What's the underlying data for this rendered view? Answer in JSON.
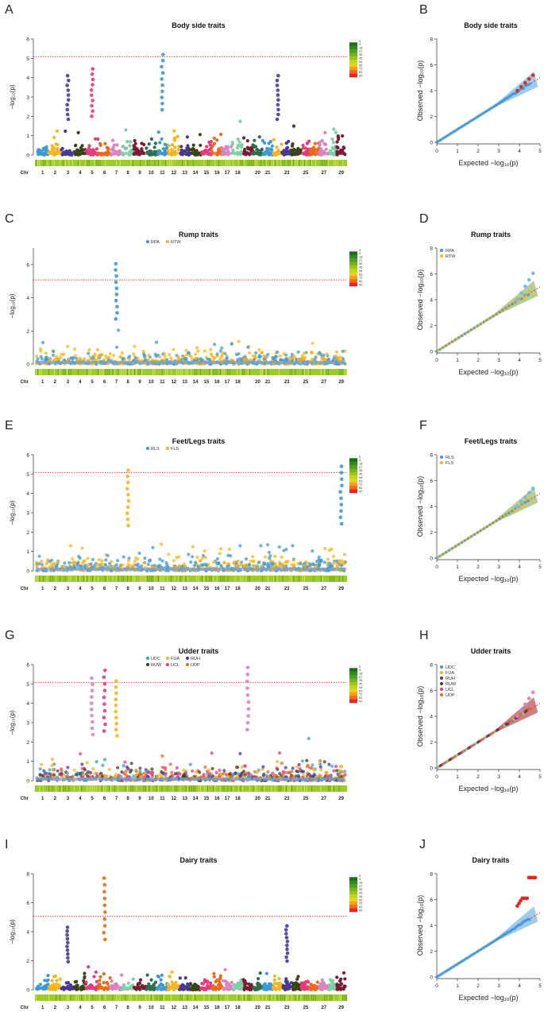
{
  "figure": {
    "chr_prefix": "Chr",
    "chromosome_labels": [
      "1",
      "2",
      "3",
      "4",
      "5",
      "6",
      "7",
      "8",
      "9",
      "10",
      "11",
      "12",
      "13",
      "14",
      "15",
      "16",
      "17",
      "18",
      "20",
      "21",
      "23",
      "25",
      "27",
      "29"
    ],
    "chromosome_count": 29,
    "significance_threshold": 5.08,
    "color_key": {
      "labels": [
        "0",
        "9",
        "18",
        "27",
        "36",
        "45",
        "54",
        "63",
        "72",
        "81",
        "90"
      ],
      "colors": [
        "#f4f4f4",
        "#1a6e1a",
        "#2e8b1e",
        "#4d9e21",
        "#74b21f",
        "#9cc51c",
        "#c2d619",
        "#e8d21a",
        "#f5a21b",
        "#f26a1c",
        "#e8261b"
      ]
    },
    "qq_axes": {
      "xlabel": "Expected  −log₁₀(p)",
      "ylabel": "Observed  −log₁₀(p)"
    },
    "manhattan_ylabel": "−log₁₀(p)",
    "chr_palette": [
      "#3f98d6",
      "#f6b51a",
      "#4a3892",
      "#3b4318",
      "#e63b7a",
      "#ea6a1a",
      "#d984c2",
      "#7fcfa4",
      "#7a1c35",
      "#2d6e4c",
      "#3f98d6",
      "#f6b51a",
      "#4a3892",
      "#3b4318",
      "#e63b7a",
      "#ea6a1a",
      "#d984c2",
      "#7fcfa4",
      "#7a1c35",
      "#2d6e4c",
      "#3f98d6",
      "#f6b51a",
      "#4a3892",
      "#3b4318",
      "#e63b7a",
      "#ea6a1a",
      "#d984c2",
      "#7fcfa4",
      "#7a1c35"
    ],
    "rows": [
      {
        "manhattan_letter": "A",
        "qq_letter": "B",
        "manhattan_title": "Body side traits",
        "qq_title": "Body side traits",
        "y_max": 6,
        "y_ticks": [
          "0",
          "1",
          "2",
          "3",
          "4",
          "5",
          "6"
        ],
        "qq_y_max": 8,
        "qq_y_ticks": [
          "0",
          "2",
          "4",
          "6",
          "8"
        ],
        "mode": "chr",
        "traits": [],
        "peaks": [
          {
            "chr": 11,
            "value": 5.2,
            "color": "#3f98d6"
          },
          {
            "chr": 5,
            "value": 4.45,
            "color": "#e63b7a"
          },
          {
            "chr": 3,
            "value": 4.1,
            "color": "#4a3892"
          },
          {
            "chr": 22,
            "value": 4.1,
            "color": "#4a3892"
          }
        ],
        "qq_max_observed": 5.2,
        "qq_hit_color": "#e8261b",
        "qq_band_color": "#4ea3de"
      },
      {
        "manhattan_letter": "C",
        "qq_letter": "D",
        "manhattan_title": "Rump traits",
        "qq_title": "Rump traits",
        "y_max": 7,
        "y_ticks": [
          "0",
          "2",
          "4",
          "6"
        ],
        "qq_y_max": 8,
        "qq_y_ticks": [
          "0",
          "2",
          "4",
          "6",
          "8"
        ],
        "mode": "traits",
        "traits": [
          {
            "name": "RPA",
            "color": "#3f98d6"
          },
          {
            "name": "RTW",
            "color": "#f6b51a"
          }
        ],
        "peaks": [
          {
            "chr": 7,
            "value": 6.05,
            "color": "#3f98d6"
          }
        ],
        "qq_max_observed": 6.05,
        "qq_hit_color": "#7fb8e6",
        "qq_band_color": "#7aa53a"
      },
      {
        "manhattan_letter": "E",
        "qq_letter": "F",
        "manhattan_title": "Feet/Legs traits",
        "qq_title": "Feet/Legs traits",
        "y_max": 6,
        "y_ticks": [
          "0",
          "1",
          "2",
          "3",
          "4",
          "5",
          "6"
        ],
        "qq_y_max": 8,
        "qq_y_ticks": [
          "0",
          "2",
          "4",
          "6",
          "8"
        ],
        "mode": "traits",
        "traits": [
          {
            "name": "RLS",
            "color": "#3f98d6"
          },
          {
            "name": "FLS",
            "color": "#f6b51a"
          }
        ],
        "peaks": [
          {
            "chr": 8,
            "value": 5.2,
            "color": "#f6b51a"
          },
          {
            "chr": 29,
            "value": 5.4,
            "color": "#3f98d6"
          }
        ],
        "qq_max_observed": 5.4,
        "qq_hit_color": "#7fb8e6",
        "qq_band_color": "#7aa53a"
      },
      {
        "manhattan_letter": "G",
        "qq_letter": "H",
        "manhattan_title": "Udder traits",
        "qq_title": "Udder traits",
        "y_max": 6,
        "y_ticks": [
          "0",
          "1",
          "2",
          "3",
          "4",
          "5",
          "6"
        ],
        "qq_y_max": 8,
        "qq_y_ticks": [
          "0",
          "2",
          "4",
          "6",
          "8"
        ],
        "mode": "traits",
        "traits": [
          {
            "name": "UDC",
            "color": "#3f98d6"
          },
          {
            "name": "FUA",
            "color": "#f6b51a"
          },
          {
            "name": "RUH",
            "color": "#4a3892"
          },
          {
            "name": "RUW",
            "color": "#3b4318"
          },
          {
            "name": "UCL",
            "color": "#e63b7a"
          },
          {
            "name": "UDP",
            "color": "#ea6a1a"
          }
        ],
        "peaks": [
          {
            "chr": 5,
            "value": 5.3,
            "color": "#d984c2"
          },
          {
            "chr": 6,
            "value": 5.7,
            "color": "#e63b7a"
          },
          {
            "chr": 19,
            "value": 5.85,
            "color": "#d984c2"
          },
          {
            "chr": 7,
            "value": 5.15,
            "color": "#f6b51a"
          }
        ],
        "qq_max_observed": 5.85,
        "qq_hit_color": "#d984c2",
        "qq_band_color": "#a41a1a"
      },
      {
        "manhattan_letter": "I",
        "qq_letter": "J",
        "manhattan_title": "Dairy traits",
        "qq_title": "Dairy traits",
        "y_max": 8,
        "y_ticks": [
          "0",
          "2",
          "4",
          "6",
          "8"
        ],
        "qq_y_max": 8,
        "qq_y_ticks": [
          "0",
          "2",
          "4",
          "6",
          "8"
        ],
        "mode": "chr",
        "traits": [],
        "peaks": [
          {
            "chr": 6,
            "value": 7.7,
            "color": "#ea6a1a"
          },
          {
            "chr": 23,
            "value": 4.4,
            "color": "#4a3892"
          },
          {
            "chr": 3,
            "value": 4.3,
            "color": "#4a3892"
          }
        ],
        "qq_max_observed": 7.7,
        "qq_hit_color": "#e8261b",
        "qq_band_color": "#4ea3de"
      }
    ]
  },
  "chart_data": [
    {
      "panel": "A",
      "type": "scatter",
      "title": "Body side traits",
      "xlabel": "Chr",
      "ylabel": "−log10(p)",
      "x": [
        "1",
        "2",
        "3",
        "4",
        "5",
        "6",
        "7",
        "8",
        "9",
        "10",
        "11",
        "12",
        "13",
        "14",
        "15",
        "16",
        "17",
        "18",
        "20",
        "21",
        "23",
        "25",
        "27",
        "29"
      ],
      "ylim": [
        0,
        6
      ],
      "threshold": 5.08,
      "top_peaks": [
        {
          "chr": "11",
          "value": 5.2
        },
        {
          "chr": "5",
          "value": 4.45
        },
        {
          "chr": "3",
          "value": 4.1
        }
      ]
    },
    {
      "panel": "B",
      "type": "scatter",
      "title": "Body side traits",
      "xlabel": "Expected −log10(p)",
      "ylabel": "Observed −log10(p)",
      "xlim": [
        0,
        5
      ],
      "ylim": [
        0,
        8
      ],
      "max_observed": 5.2
    },
    {
      "panel": "C",
      "type": "scatter",
      "title": "Rump traits",
      "legend": [
        "RPA",
        "RTW"
      ],
      "xlabel": "Chr",
      "ylabel": "−log10(p)",
      "ylim": [
        0,
        7
      ],
      "threshold": 5.08,
      "top_peaks": [
        {
          "chr": "7",
          "value": 6.05,
          "trait": "RPA"
        }
      ]
    },
    {
      "panel": "D",
      "type": "scatter",
      "title": "Rump traits",
      "legend": [
        "RPA",
        "RTW"
      ],
      "xlim": [
        0,
        5
      ],
      "ylim": [
        0,
        8
      ],
      "max_observed": 6.05
    },
    {
      "panel": "E",
      "type": "scatter",
      "title": "Feet/Legs traits",
      "legend": [
        "RLS",
        "FLS"
      ],
      "ylim": [
        0,
        6
      ],
      "threshold": 5.08,
      "top_peaks": [
        {
          "chr": "8",
          "value": 5.2,
          "trait": "FLS"
        },
        {
          "chr": "29",
          "value": 5.4,
          "trait": "RLS"
        }
      ]
    },
    {
      "panel": "F",
      "type": "scatter",
      "title": "Feet/Legs traits",
      "legend": [
        "RLS",
        "FLS"
      ],
      "xlim": [
        0,
        5
      ],
      "ylim": [
        0,
        8
      ],
      "max_observed": 5.4
    },
    {
      "panel": "G",
      "type": "scatter",
      "title": "Udder traits",
      "legend": [
        "UDC",
        "FUA",
        "RUH",
        "RUW",
        "UCL",
        "UDP"
      ],
      "ylim": [
        0,
        6
      ],
      "threshold": 5.08,
      "top_peaks": [
        {
          "chr": "5",
          "value": 5.3
        },
        {
          "chr": "6",
          "value": 5.7
        },
        {
          "chr": "19",
          "value": 5.85
        }
      ]
    },
    {
      "panel": "H",
      "type": "scatter",
      "title": "Udder traits",
      "legend": [
        "UDC",
        "FUA",
        "RUH",
        "RUW",
        "UCL",
        "UDP"
      ],
      "xlim": [
        0,
        5
      ],
      "ylim": [
        0,
        8
      ],
      "max_observed": 5.85
    },
    {
      "panel": "I",
      "type": "scatter",
      "title": "Dairy traits",
      "ylim": [
        0,
        8
      ],
      "threshold": 5.08,
      "top_peaks": [
        {
          "chr": "6",
          "value": 7.7
        },
        {
          "chr": "23",
          "value": 4.4
        }
      ]
    },
    {
      "panel": "J",
      "type": "scatter",
      "title": "Dairy traits",
      "xlim": [
        0,
        5
      ],
      "ylim": [
        0,
        8
      ],
      "max_observed": 7.7
    }
  ]
}
